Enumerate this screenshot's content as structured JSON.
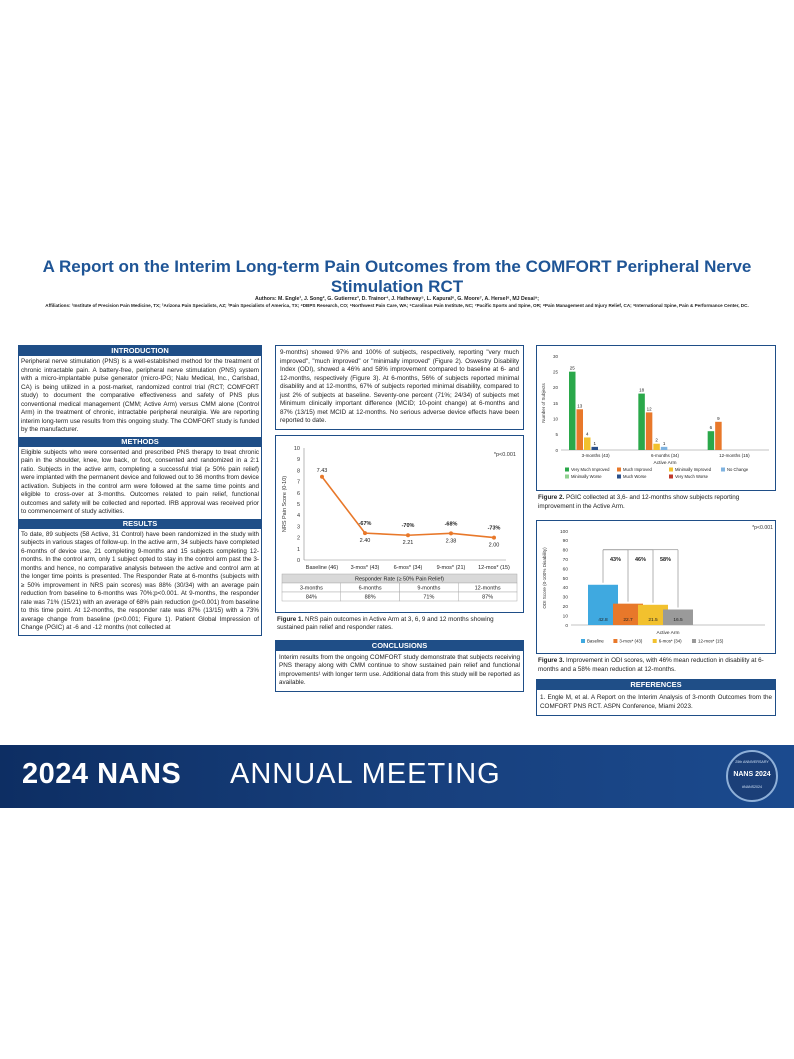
{
  "title": "A Report on the Interim Long-term Pain Outcomes from the COMFORT Peripheral Nerve Stimulation RCT",
  "authors": "Authors: M. Engle¹, J. Song², G. Gutierrez³, D. Trainor⁴, J. Hatheway⁵, L. Kapural⁶, G. Moore⁷, A. Hersel⁸, MJ Desai⁹;",
  "affiliations": "Affiliations: ¹Institute of Precision Pain Medicine, TX; ²Arizona Pain Specialists, AZ; ³Pain Specialists of America, TX; ⁴DBPS Research, CO; ⁵Northwest Pain Care, WA; ⁶Carolinas Pain Institute, NC; ⁷Pacific Sports and Spine, OR; ⁸Pain Management and Injury Relief, CA; ⁹International Spine, Pain & Performance Center, DC.",
  "sections": {
    "introduction": {
      "heading": "INTRODUCTION",
      "text": "Peripheral nerve stimulation (PNS) is a well-established method for the treatment of chronic intractable pain. A battery-free, peripheral nerve stimulation (PNS) system with a micro-implantable pulse generator (micro-IPG; Nalu Medical, Inc., Carlsbad, CA) is being utilized in a post-market, randomized control trial (RCT; COMFORT study) to document the comparative effectiveness and safety of PNS plus conventional medical management (CMM; Active Arm) versus CMM alone (Control Arm) in the treatment of chronic, intractable peripheral neuralgia. We are reporting interim long-term use results from this ongoing study. The COMFORT study is funded by the manufacturer."
    },
    "methods": {
      "heading": "METHODS",
      "text": "Eligible subjects who were consented and prescribed PNS therapy to treat chronic pain in the shoulder, knee, low back, or foot, consented and randomized in a 2:1 ratio. Subjects in the active arm, completing a successful trial (≥ 50% pain relief) were implanted with the permanent device and followed out to 36 months from device activation. Subjects in the control arm were followed at the same time points and eligible to cross-over at 3-months. Outcomes related to pain relief, functional outcomes and safety will be collected and reported. IRB approval was received prior to commencement of study activities."
    },
    "results": {
      "heading": "RESULTS",
      "text": "To date, 89 subjects (58 Active, 31 Control) have been randomized in the study with subjects in various stages of follow-up. In the active arm, 34 subjects have completed 6-months of device use, 21 completing 9-months and 15 subjects completing 12-months. In the control arm, only 1 subject opted to stay in the control arm past the 3-months and hence, no comparative analysis between the active and control arm at the longer time points is presented. The Responder Rate at 6-months (subjects with ≥ 50% improvement in NRS pain scores) was 88% (30/34) with an average pain reduction from baseline to 6-months was 70%;p<0.001. At 9-months, the responder rate was 71% (15/21) with an average of 68% pain reduction (p<0.001) from baseline to this time point. At 12-months, the responder rate was 87% (13/15) with a 73% average change from baseline (p<0.001; Figure 1). Patient Global Impression of Change (PGIC) at -6 and -12 months (not collected at",
      "continued": "9-months) showed 97% and 100% of subjects, respectively, reporting \"very much improved\", \"much improved\" or \"minimally improved\" (Figure 2). Oswestry Disability Index (ODI), showed a 46% and 58% improvement compared to baseline at 6- and 12-months, respectively (Figure 3). At 6-months, 56% of subjects reported minimal disability and at 12-months, 67% of subjects reported minimal disability, compared to just 2% of subjects at baseline. Seventy-one percent (71%; 24/34) of subjects met Minimum clinically important difference (MCID; 10-point change) at 6-months and 87% (13/15) met MCID at 12-months. No serious adverse device effects have been reported to date."
    },
    "conclusions": {
      "heading": "CONCLUSIONS",
      "text": "Interim results from the ongoing COMFORT study demonstrate that subjects receiving PNS therapy along with CMM continue to show sustained pain relief and functional improvements¹ with longer term use. Additional data from this study will be reported as available."
    },
    "references": {
      "heading": "REFERENCES",
      "text": "1. Engle M, et al. A Report on the Interim Analysis of 3-month Outcomes from the COMFORT PNS RCT. ASPN Conference, Miami 2023."
    }
  },
  "figures": {
    "fig1": {
      "caption_bold": "Figure 1.",
      "caption": " NRS pain outcomes in Active Arm at 3, 6, 9 and 12 months showing sustained pain relief and responder rates.",
      "pnote": "*p<0.001",
      "table_title": "Responder Rate (≥ 50% Pain Relief)",
      "table_headers": [
        "3-months",
        "6-months",
        "9-months",
        "12-months"
      ],
      "table_values": [
        "84%",
        "88%",
        "71%",
        "87%"
      ]
    },
    "fig2": {
      "caption_bold": "Figure 2.",
      "caption": " PGIC collected at 3,6- and 12-months show subjects reporting improvement in the Active Arm."
    },
    "fig3": {
      "caption_bold": "Figure 3.",
      "caption": " Improvement in ODI scores, with 46% mean reduction in disability at 6-months and a 58% mean reduction at 12-months.",
      "pnote": "*p<0.001"
    }
  },
  "chart_data": [
    {
      "type": "line",
      "ylabel": "NRS Pain Score (0-10)",
      "ylim": [
        0,
        10
      ],
      "yticks": [
        0,
        1,
        2,
        3,
        4,
        5,
        6,
        7,
        8,
        9,
        10
      ],
      "categories": [
        "Baseline (46)",
        "3-mos* (43)",
        "6-mos* (34)",
        "9-mos* (21)",
        "12-mos* (15)"
      ],
      "values": [
        7.43,
        2.4,
        2.21,
        2.38,
        2.0
      ],
      "value_labels": [
        "7.43",
        "2.40",
        "2.21",
        "2.38",
        "2.00"
      ],
      "change_labels": [
        "",
        "-67%",
        "-70%",
        "-68%",
        "-73%"
      ],
      "color": "#e8782a"
    },
    {
      "type": "bar",
      "xlabel": "Active Arm",
      "ylabel": "Number of Subjects",
      "ylim": [
        0,
        30
      ],
      "yticks": [
        0,
        5,
        10,
        15,
        20,
        25,
        30
      ],
      "categories": [
        "3-months (43)",
        "6-months (34)",
        "12-months (15)"
      ],
      "series": [
        {
          "name": "Very Much Improved",
          "color": "#2aa84a",
          "values": [
            25,
            18,
            6
          ]
        },
        {
          "name": "Much Improved",
          "color": "#e8782a",
          "values": [
            13,
            12,
            9
          ]
        },
        {
          "name": "Minimally Improved",
          "color": "#f2c12e",
          "values": [
            4,
            2,
            0
          ]
        },
        {
          "name": "No Change",
          "color": "#7fb3e0",
          "values": [
            0,
            1,
            0
          ]
        },
        {
          "name": "Minimally Worse",
          "color": "#8fd08f",
          "values": [
            0,
            0,
            0
          ]
        },
        {
          "name": "Much Worse",
          "color": "#2a4f8a",
          "values": [
            1,
            0,
            0
          ]
        },
        {
          "name": "Very Much Worse",
          "color": "#c0392b",
          "values": [
            0,
            0,
            0
          ]
        }
      ],
      "value_labels": [
        [
          "25",
          "13",
          "4",
          "",
          "",
          "1",
          ""
        ],
        [
          "18",
          "12",
          "2",
          "1",
          "",
          "",
          ""
        ],
        [
          "6",
          "9",
          "",
          "",
          "",
          "",
          ""
        ]
      ],
      "legend": "bottom"
    },
    {
      "type": "bar",
      "xlabel": "Active Arm",
      "ylabel": "ODI Score (0-100% Disability)",
      "ylim": [
        0,
        100
      ],
      "yticks": [
        0,
        10,
        20,
        30,
        40,
        50,
        60,
        70,
        80,
        90,
        100
      ],
      "categories": [
        "Baseline",
        "3-mos* (43)",
        "6-mos* (34)",
        "12-mos* (15)"
      ],
      "values": [
        42.8,
        22.7,
        21.5,
        16.5
      ],
      "colors": [
        "#3fa9e0",
        "#e8782a",
        "#f2c12e",
        "#9a9a9a"
      ],
      "change_labels": [
        "43%",
        "46%",
        "58%"
      ],
      "legend": "bottom"
    }
  ],
  "banner": {
    "year_title": "2024 NANS",
    "subtitle": "ANNUAL MEETING",
    "seal_top": "25th ANNIVERSARY",
    "seal_main": "NANS 2024",
    "seal_bottom": "#NANS2024"
  }
}
